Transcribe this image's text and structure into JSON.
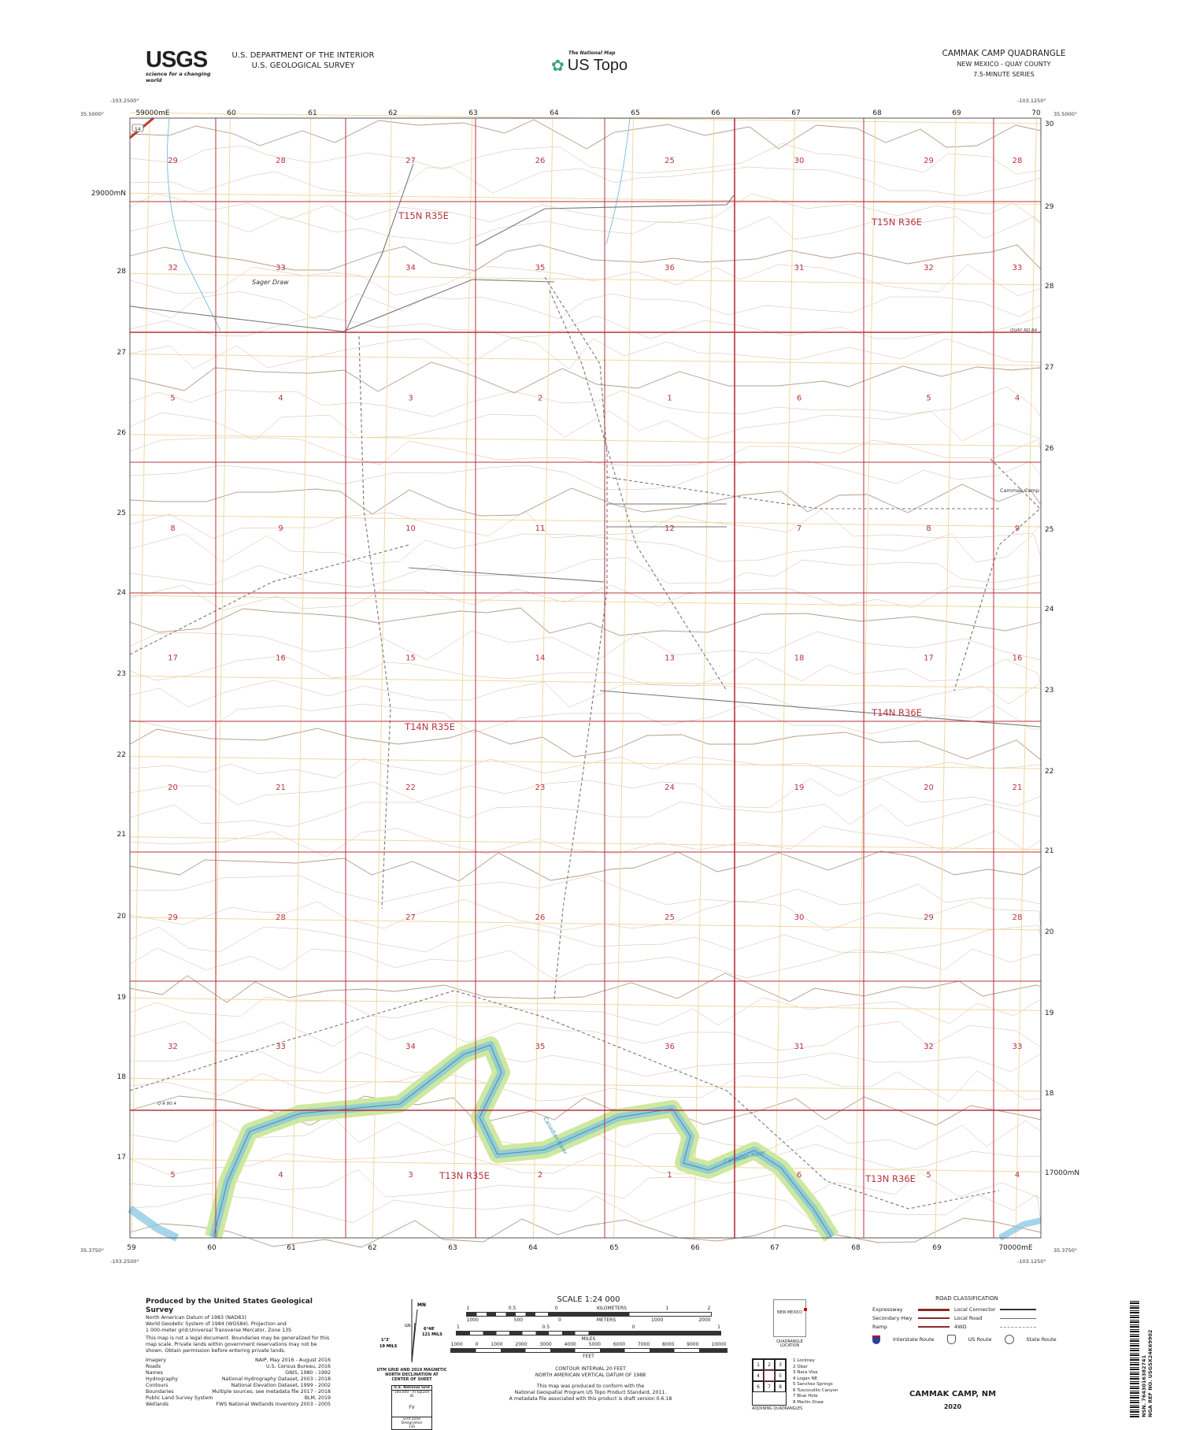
{
  "header": {
    "agency_logo": "USGS",
    "agency_tagline": "science for a changing world",
    "department": "U.S. DEPARTMENT OF THE INTERIOR",
    "survey": "U.S. GEOLOGICAL SURVEY",
    "product_small": "The National Map",
    "product_name": "US Topo",
    "quad_title": "CAMMAK CAMP QUADRANGLE",
    "state_county": "NEW MEXICO - QUAY COUNTY",
    "series": "7.5-MINUTE SERIES"
  },
  "map": {
    "corners": {
      "nw_lon": "-103.2500°",
      "nw_lat": "35.5000°",
      "ne_lon": "-103.1250°",
      "ne_lat": "35.5000°",
      "sw_lon": "-103.2500°",
      "sw_lat": "35.3750°",
      "se_lon": "-103.1250°",
      "se_lat": "35.3750°"
    },
    "easting_top": [
      "59000mE",
      "60",
      "61",
      "62",
      "63",
      "64",
      "65",
      "66",
      "67",
      "68",
      "69",
      "70"
    ],
    "easting_bottom": [
      "59",
      "60",
      "61",
      "62",
      "63",
      "64",
      "65",
      "66",
      "67",
      "68",
      "69",
      "70000mE"
    ],
    "northing_left": [
      "29000mN",
      "28",
      "27",
      "26",
      "25",
      "24",
      "23",
      "22",
      "21",
      "20",
      "19",
      "18",
      "17"
    ],
    "northing_right": [
      "30",
      "29",
      "28",
      "27",
      "26",
      "25",
      "24",
      "23",
      "22",
      "21",
      "20",
      "19",
      "18",
      "17000mN"
    ],
    "sections": [
      [
        "29",
        "28",
        "27",
        "26",
        "25",
        "30",
        "29",
        "28"
      ],
      [
        "32",
        "33",
        "34",
        "35",
        "36",
        "31",
        "32",
        "33"
      ],
      [
        "5",
        "4",
        "3",
        "2",
        "1",
        "6",
        "5",
        "4"
      ],
      [
        "8",
        "9",
        "10",
        "11",
        "12",
        "7",
        "8",
        "9"
      ],
      [
        "17",
        "16",
        "15",
        "14",
        "13",
        "18",
        "17",
        "16"
      ],
      [
        "20",
        "21",
        "22",
        "23",
        "24",
        "19",
        "20",
        "21"
      ],
      [
        "29",
        "28",
        "27",
        "26",
        "25",
        "30",
        "29",
        "28"
      ],
      [
        "32",
        "33",
        "34",
        "35",
        "36",
        "31",
        "32",
        "33"
      ],
      [
        "5",
        "4",
        "3",
        "2",
        "1",
        "6",
        "5",
        "4"
      ]
    ],
    "townships": [
      "T15N R35E",
      "T15N R36E",
      "T14N R35E",
      "T14N R36E",
      "T13N R35E",
      "T13N R36E"
    ],
    "place_labels": {
      "sager_draw": "Sager Draw",
      "cammak_camp": "Cammak Camp",
      "quay_rd_84": "QUAY RD 84",
      "quay_rd_80": "Q R 80.4",
      "canadian_river": "Canadian River",
      "us_route": "54"
    },
    "colors": {
      "plss": "#b8323f",
      "utm_grid": "#f0d9a0",
      "contour": "#c9a98b",
      "index_contour": "#a5836a",
      "water": "#7fc3e0",
      "wooded": "#cfe8a0",
      "road": "#777777",
      "us_route": "#c0392b"
    }
  },
  "footer": {
    "producer": "Produced by the United States Geological Survey",
    "datum_lines": [
      "North American Datum of 1983 (NAD83)",
      "World Geodetic System of 1984 (WGS84). Projection and",
      "1 000-meter grid:Universal Transverse Mercator, Zone 13S"
    ],
    "disclaimer": "This map is not a legal document. Boundaries may be generalized for this map scale. Private lands within government reservations may not be shown. Obtain permission before entering private lands.",
    "sources": [
      {
        "label": "Imagery",
        "value": "NAIP, May 2016 - August 2016"
      },
      {
        "label": "Roads",
        "value": "U.S. Census Bureau, 2016"
      },
      {
        "label": "Names",
        "value": "GNIS, 1980 - 1992"
      },
      {
        "label": "Hydrography",
        "value": "National Hydrography Dataset, 2003 - 2018"
      },
      {
        "label": "Contours",
        "value": "National Elevation Dataset, 1999 - 2002"
      },
      {
        "label": "Boundaries",
        "value": "Multiple sources; see metadata file 2017 - 2018"
      },
      {
        "label": "Public Land Survey System",
        "value": "BLM, 2019"
      },
      {
        "label": "Wetlands",
        "value": "FWS National Wetlands Inventory 2003 - 2005"
      }
    ],
    "declination": {
      "mn": "MN",
      "gn": "GN",
      "angle1": "6°48'",
      "mils1": "121 MILS",
      "angle2": "1°3'",
      "mils2": "19 MILS",
      "caption": "UTM GRID AND 2019 MAGNETIC NORTH DECLINATION AT CENTER OF SHEET",
      "grid_title": "U.S. National Grid",
      "grid_sub": "100,000 - m Square ID",
      "grid_id": "FV",
      "zone_label": "Grid Zone Designation",
      "zone": "13S"
    },
    "scale": {
      "title": "SCALE 1:24 000",
      "km_ticks": [
        "1",
        "0.5",
        "0",
        "KILOMETERS",
        "1",
        "2"
      ],
      "m_ticks": [
        "1000",
        "500",
        "0",
        "METERS",
        "1000",
        "2000"
      ],
      "mi_ticks": [
        "1",
        "0.5",
        "0",
        "1"
      ],
      "mi_label": "MILES",
      "ft_ticks": [
        "1000",
        "0",
        "1000",
        "2000",
        "3000",
        "4000",
        "5000",
        "6000",
        "7000",
        "8000",
        "9000",
        "10000"
      ],
      "ft_label": "FEET"
    },
    "notes": [
      "CONTOUR INTERVAL 20 FEET",
      "NORTH AMERICAN VERTICAL DATUM OF 1988",
      "This map was produced to conform with the",
      "National Geospatial Program US Topo Product Standard, 2011.",
      "A metadata file associated with this product is draft version 0.6.18"
    ],
    "quad_location": {
      "state": "NEW MEXICO",
      "caption": "QUADRANGLE LOCATION"
    },
    "road_classification": {
      "title": "ROAD CLASSIFICATION",
      "items": [
        "Expressway",
        "Local Connector",
        "Secondary Hwy",
        "Local Road",
        "Ramp",
        "4WD"
      ],
      "shields": [
        "Interstate Route",
        "US Route",
        "State Route"
      ]
    },
    "adjoining": {
      "cells": [
        "1",
        "2",
        "3",
        "4",
        "",
        "5",
        "6",
        "7",
        "8"
      ],
      "names": [
        "1 Lockney",
        "2 Obar",
        "3 Nara Visa",
        "4 Logan NE",
        "5 Sanchez Springs",
        "6 Tuscocolilo Canyon",
        "7 Blue Hole",
        "8 Martin Draw"
      ],
      "caption": "ADJOINING QUADRANGLES"
    },
    "title": "CAMMAK CAMP, NM",
    "year": "2020",
    "barcode_text": "NSN. 7643016382741",
    "nga_ref": "NGA REF NO. USGSX24K69902"
  }
}
